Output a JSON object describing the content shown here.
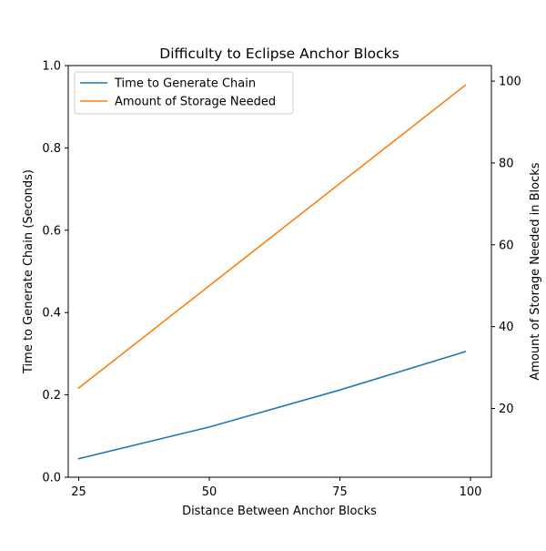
{
  "chart_data": {
    "type": "line",
    "title": "Difficulty to Eclipse Anchor Blocks",
    "xlabel": "Distance Between Anchor Blocks",
    "ylabel": "Time to Generate Chain (Seconds)",
    "y2label": "Amount of Storage Needed in Blocks",
    "xlim": [
      23,
      104
    ],
    "ylim": [
      0,
      1.0
    ],
    "y2lim": [
      3.2,
      103.8
    ],
    "x_ticks": [
      "25",
      "50",
      "75",
      "100"
    ],
    "y_ticks": [
      "0.0",
      "0.2",
      "0.4",
      "0.6",
      "0.8",
      "1.0"
    ],
    "y2_ticks": [
      "20",
      "40",
      "60",
      "80",
      "100"
    ],
    "grid": false,
    "legend_position": "upper-left",
    "series": [
      {
        "name": "Time to Generate Chain",
        "axis": "left",
        "color": "#1f77b4",
        "x": [
          25,
          50,
          75,
          99
        ],
        "values": [
          0.045,
          0.122,
          0.212,
          0.305
        ]
      },
      {
        "name": "Amount of Storage Needed",
        "axis": "right",
        "color": "#ff7f0e",
        "x": [
          25,
          50,
          75,
          99
        ],
        "values": [
          25,
          50,
          75,
          99
        ]
      }
    ]
  }
}
